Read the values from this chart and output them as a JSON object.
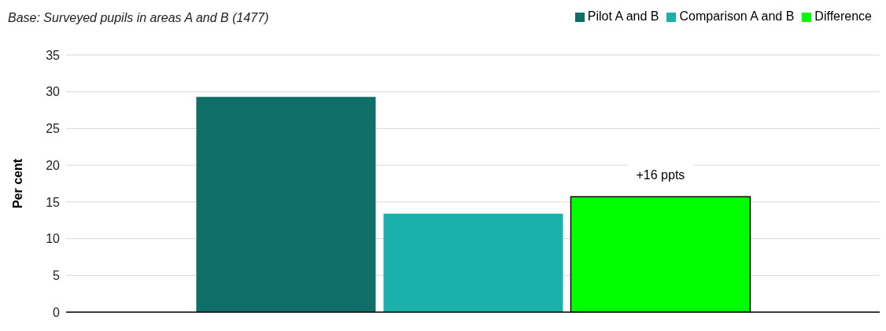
{
  "chart_data": {
    "type": "bar",
    "subtitle": "Base: Surveyed pupils in areas A and B (1477)",
    "ylabel": "Per cent",
    "categories": [
      null
    ],
    "series": [
      {
        "name": "Pilot A and B",
        "color": "#106e69",
        "values": [
          29.3
        ]
      },
      {
        "name": "Comparison A and B",
        "color": "#1ab0ac",
        "values": [
          13.4
        ]
      },
      {
        "name": "Difference",
        "color": "#00ff00",
        "values": [
          15.7
        ],
        "value_labels": [
          "+16 ppts"
        ]
      }
    ],
    "ylim": [
      0,
      35
    ],
    "yticks": [
      0,
      5,
      10,
      15,
      20,
      25,
      30,
      35
    ],
    "grid": "y",
    "legend": "top right"
  }
}
